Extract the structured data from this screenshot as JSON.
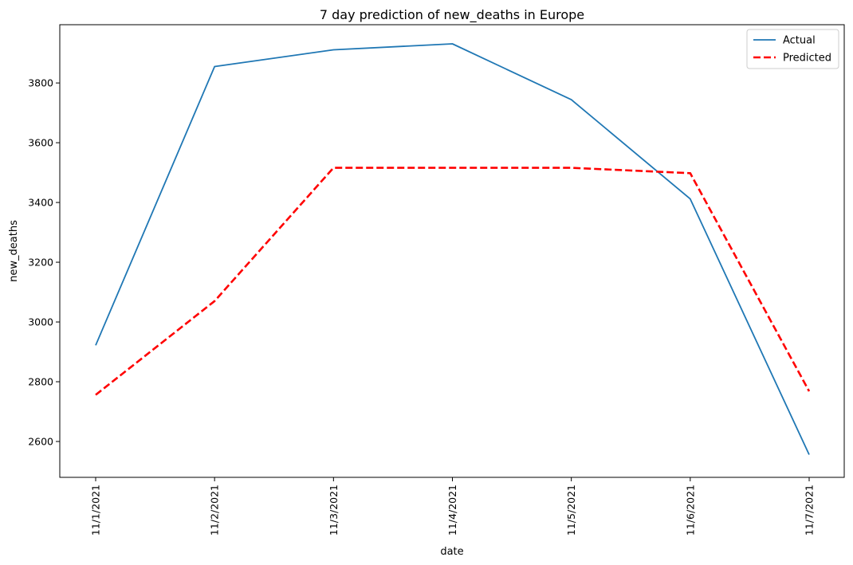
{
  "chart_data": {
    "type": "line",
    "title": "7 day prediction of new_deaths in Europe",
    "xlabel": "date",
    "ylabel": "new_deaths",
    "categories": [
      "11/1/2021",
      "11/2/2021",
      "11/3/2021",
      "11/4/2021",
      "11/5/2021",
      "11/6/2021",
      "11/7/2021"
    ],
    "yticks": [
      2600,
      2800,
      3000,
      3200,
      3400,
      3600,
      3800
    ],
    "ylim": [
      2480,
      3995
    ],
    "grid": false,
    "legend_position": "top-right",
    "series": [
      {
        "name": "Actual",
        "values": [
          2922,
          3855,
          3911,
          3931,
          3744,
          3412,
          2556
        ],
        "color": "#1f77b4",
        "style": "solid"
      },
      {
        "name": "Predicted",
        "values": [
          2756,
          3070,
          3516,
          3516,
          3516,
          3498,
          2768
        ],
        "color": "#ff0000",
        "style": "dashed"
      }
    ]
  }
}
